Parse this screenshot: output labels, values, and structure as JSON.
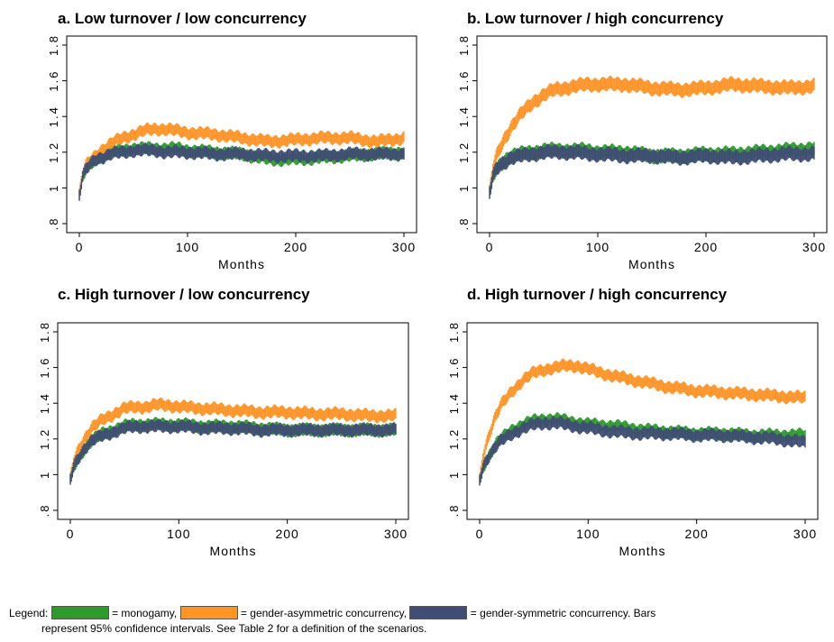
{
  "colors": {
    "monogamy": "#2e9a2e",
    "asymmetric": "#ff9428",
    "symmetric": "#3f4e72"
  },
  "chart_data": [
    {
      "type": "line",
      "title": "a. Low turnover / low concurrency",
      "xlabel": "Months",
      "ylabel": "",
      "xlim": [
        0,
        300
      ],
      "ylim": [
        0.8,
        1.8
      ],
      "x_ticks": [
        "0",
        "100",
        "200",
        "300"
      ],
      "y_ticks": [
        ".8",
        "1",
        "1.2",
        "1.4",
        "1.6",
        "1.8"
      ],
      "x": [
        0,
        3,
        6,
        10,
        15,
        20,
        30,
        40,
        50,
        60,
        70,
        80,
        90,
        100,
        125,
        150,
        175,
        200,
        225,
        250,
        275,
        300
      ],
      "ci_halfwidth": 0.03,
      "series": [
        {
          "name": "monogamy",
          "values": [
            0.96,
            1.06,
            1.1,
            1.13,
            1.16,
            1.18,
            1.2,
            1.21,
            1.22,
            1.22,
            1.22,
            1.22,
            1.22,
            1.21,
            1.2,
            1.19,
            1.16,
            1.16,
            1.17,
            1.18,
            1.19,
            1.2
          ]
        },
        {
          "name": "gender-asymmetric concurrency",
          "values": [
            0.96,
            1.07,
            1.12,
            1.15,
            1.18,
            1.21,
            1.25,
            1.28,
            1.3,
            1.32,
            1.33,
            1.33,
            1.32,
            1.31,
            1.3,
            1.28,
            1.26,
            1.27,
            1.28,
            1.28,
            1.26,
            1.28
          ]
        },
        {
          "name": "gender-symmetric concurrency",
          "values": [
            0.96,
            1.06,
            1.1,
            1.13,
            1.16,
            1.17,
            1.19,
            1.2,
            1.21,
            1.21,
            1.21,
            1.2,
            1.2,
            1.2,
            1.19,
            1.19,
            1.18,
            1.18,
            1.18,
            1.19,
            1.19,
            1.19
          ]
        }
      ]
    },
    {
      "type": "line",
      "title": "b. Low turnover / high concurrency",
      "xlabel": "Months",
      "ylabel": "",
      "xlim": [
        0,
        300
      ],
      "ylim": [
        0.8,
        1.8
      ],
      "x_ticks": [
        "0",
        "100",
        "200",
        "300"
      ],
      "y_ticks": [
        ".8",
        "1",
        "1.2",
        "1.4",
        "1.6",
        "1.8"
      ],
      "x": [
        0,
        3,
        6,
        10,
        15,
        20,
        30,
        40,
        50,
        60,
        70,
        80,
        90,
        100,
        125,
        150,
        175,
        200,
        225,
        250,
        275,
        300
      ],
      "ci_halfwidth": 0.035,
      "series": [
        {
          "name": "monogamy",
          "values": [
            0.97,
            1.06,
            1.1,
            1.13,
            1.16,
            1.18,
            1.19,
            1.2,
            1.21,
            1.21,
            1.21,
            1.21,
            1.21,
            1.2,
            1.2,
            1.18,
            1.18,
            1.19,
            1.19,
            1.2,
            1.21,
            1.22
          ]
        },
        {
          "name": "gender-asymmetric concurrency",
          "values": [
            0.97,
            1.1,
            1.17,
            1.23,
            1.29,
            1.34,
            1.42,
            1.48,
            1.52,
            1.55,
            1.56,
            1.57,
            1.58,
            1.58,
            1.58,
            1.56,
            1.55,
            1.56,
            1.58,
            1.57,
            1.56,
            1.57
          ]
        },
        {
          "name": "gender-symmetric concurrency",
          "values": [
            0.97,
            1.06,
            1.1,
            1.13,
            1.15,
            1.17,
            1.18,
            1.19,
            1.2,
            1.2,
            1.2,
            1.2,
            1.19,
            1.19,
            1.18,
            1.18,
            1.17,
            1.18,
            1.17,
            1.18,
            1.19,
            1.19
          ]
        }
      ]
    },
    {
      "type": "line",
      "title": "c. High turnover / low concurrency",
      "xlabel": "Months",
      "ylabel": "",
      "xlim": [
        0,
        300
      ],
      "ylim": [
        0.8,
        1.8
      ],
      "x_ticks": [
        "0",
        "100",
        "200",
        "300"
      ],
      "y_ticks": [
        ".8",
        "1",
        "1.2",
        "1.4",
        "1.6",
        "1.8"
      ],
      "x": [
        0,
        3,
        6,
        10,
        15,
        20,
        30,
        40,
        50,
        60,
        70,
        80,
        90,
        100,
        125,
        150,
        175,
        200,
        225,
        250,
        275,
        300
      ],
      "ci_halfwidth": 0.03,
      "series": [
        {
          "name": "monogamy",
          "values": [
            0.97,
            1.04,
            1.08,
            1.12,
            1.16,
            1.19,
            1.23,
            1.25,
            1.27,
            1.28,
            1.28,
            1.28,
            1.28,
            1.28,
            1.27,
            1.27,
            1.26,
            1.25,
            1.25,
            1.25,
            1.25,
            1.25
          ]
        },
        {
          "name": "gender-asymmetric concurrency",
          "values": [
            0.97,
            1.07,
            1.12,
            1.17,
            1.22,
            1.26,
            1.31,
            1.34,
            1.37,
            1.38,
            1.38,
            1.39,
            1.39,
            1.38,
            1.37,
            1.36,
            1.35,
            1.35,
            1.34,
            1.34,
            1.33,
            1.33
          ]
        },
        {
          "name": "gender-symmetric concurrency",
          "values": [
            0.97,
            1.04,
            1.08,
            1.12,
            1.16,
            1.19,
            1.22,
            1.24,
            1.26,
            1.27,
            1.27,
            1.27,
            1.27,
            1.27,
            1.26,
            1.26,
            1.25,
            1.25,
            1.25,
            1.25,
            1.25,
            1.25
          ]
        }
      ]
    },
    {
      "type": "line",
      "title": "d. High turnover / high concurrency",
      "xlabel": "Months",
      "ylabel": "",
      "xlim": [
        0,
        300
      ],
      "ylim": [
        0.8,
        1.8
      ],
      "x_ticks": [
        "0",
        "100",
        "200",
        "300"
      ],
      "y_ticks": [
        ".8",
        "1",
        "1.2",
        "1.4",
        "1.6",
        "1.8"
      ],
      "x": [
        0,
        3,
        6,
        10,
        15,
        20,
        30,
        40,
        50,
        60,
        70,
        80,
        90,
        100,
        125,
        150,
        175,
        200,
        225,
        250,
        275,
        300
      ],
      "ci_halfwidth": 0.03,
      "series": [
        {
          "name": "monogamy",
          "values": [
            0.97,
            1.04,
            1.08,
            1.12,
            1.17,
            1.2,
            1.25,
            1.28,
            1.3,
            1.31,
            1.31,
            1.3,
            1.29,
            1.28,
            1.27,
            1.25,
            1.24,
            1.23,
            1.23,
            1.22,
            1.22,
            1.22
          ]
        },
        {
          "name": "gender-asymmetric concurrency",
          "values": [
            0.97,
            1.1,
            1.17,
            1.25,
            1.33,
            1.39,
            1.47,
            1.53,
            1.57,
            1.59,
            1.6,
            1.61,
            1.61,
            1.59,
            1.55,
            1.52,
            1.49,
            1.47,
            1.46,
            1.45,
            1.44,
            1.43
          ]
        },
        {
          "name": "gender-symmetric concurrency",
          "values": [
            0.97,
            1.04,
            1.08,
            1.12,
            1.16,
            1.19,
            1.23,
            1.26,
            1.28,
            1.29,
            1.29,
            1.28,
            1.27,
            1.26,
            1.24,
            1.23,
            1.23,
            1.22,
            1.22,
            1.21,
            1.2,
            1.18
          ]
        }
      ]
    }
  ],
  "legend": {
    "prefix": "Legend:",
    "item1": "= monogamy,",
    "item2": "= gender-asymmetric concurrency,",
    "item3": "= gender-symmetric concurrency. Bars",
    "line2": "represent 95% confidence intervals. See Table 2 for a definition of the scenarios."
  }
}
